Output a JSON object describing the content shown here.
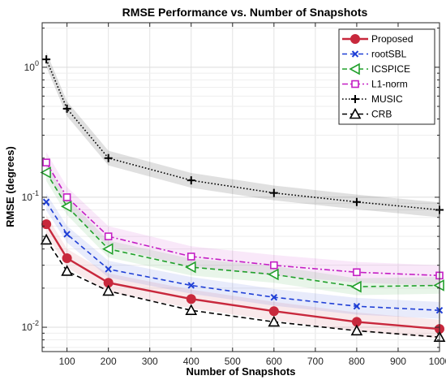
{
  "chart_data": {
    "type": "line",
    "title": "RMSE Performance vs. Number of Snapshots",
    "xlabel": "Number of Snapshots",
    "ylabel": "RMSE (degrees)",
    "xlim": [
      40,
      1000
    ],
    "ylim": [
      0.0065,
      2.2
    ],
    "y_scale": "log",
    "grid": true,
    "legend_position": "top-right",
    "x": [
      50,
      100,
      200,
      400,
      600,
      800,
      1000
    ],
    "x_ticks": [
      100,
      200,
      300,
      400,
      500,
      600,
      700,
      800,
      900,
      1000
    ],
    "y_ticks": [
      {
        "value": 0.01,
        "base": "10",
        "exp": "-2"
      },
      {
        "value": 0.1,
        "base": "10",
        "exp": "-1"
      },
      {
        "value": 1,
        "base": "10",
        "exp": "0"
      }
    ],
    "series": [
      {
        "name": "Proposed",
        "values": [
          0.062,
          0.034,
          0.022,
          0.0165,
          0.0133,
          0.011,
          0.0097
        ],
        "color": "#c8283c",
        "dash": "solid",
        "marker": "circle",
        "band": 0.18
      },
      {
        "name": "rootSBL",
        "values": [
          0.092,
          0.052,
          0.028,
          0.021,
          0.017,
          0.0145,
          0.0135
        ],
        "color": "#1f3fd6",
        "dash": "dashed",
        "marker": "x",
        "band": 0.16
      },
      {
        "name": "ICSPICE",
        "values": [
          0.155,
          0.085,
          0.04,
          0.029,
          0.0255,
          0.0205,
          0.021
        ],
        "color": "#22a02c",
        "dash": "dashed",
        "marker": "triangle-left",
        "band": 0.16
      },
      {
        "name": "L1-norm",
        "values": [
          0.185,
          0.1,
          0.05,
          0.035,
          0.03,
          0.0265,
          0.025
        ],
        "color": "#c41ec4",
        "dash": "dashdot",
        "marker": "square",
        "band": 0.2
      },
      {
        "name": "MUSIC",
        "values": [
          1.15,
          0.48,
          0.2,
          0.135,
          0.108,
          0.092,
          0.08
        ],
        "color": "#000000",
        "dash": "dotted",
        "marker": "plus",
        "band": 0.14
      },
      {
        "name": "CRB",
        "values": [
          0.047,
          0.027,
          0.019,
          0.0135,
          0.011,
          0.0094,
          0.0084
        ],
        "color": "#000000",
        "dash": "dashed",
        "marker": "triangle-up",
        "band": 0
      }
    ]
  }
}
